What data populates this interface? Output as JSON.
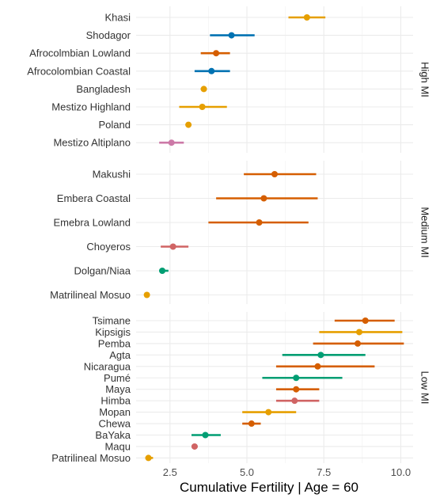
{
  "chart_data": {
    "type": "dot-errorbar",
    "xlabel": "Cumulative Fertility | Age = 60",
    "xlim": [
      1.4,
      10.4
    ],
    "xticks": [
      2.5,
      5.0,
      7.5,
      10.0
    ],
    "xtick_labels": [
      "2.5",
      "5.0",
      "7.5",
      "10.0"
    ],
    "grid": true,
    "legend": "none",
    "colors": {
      "orange": "#E69F00",
      "blue": "#0072B2",
      "vermillion": "#D55E00",
      "pink": "#CC79A7",
      "green": "#009E73",
      "rose": "#D06464"
    },
    "panels": [
      {
        "label": "High MI",
        "rows": [
          {
            "name": "Khasi",
            "value": 6.95,
            "lo": 6.35,
            "hi": 7.55,
            "color": "#E69F00"
          },
          {
            "name": "Shodagor",
            "value": 4.5,
            "lo": 3.8,
            "hi": 5.25,
            "color": "#0072B2"
          },
          {
            "name": "Afrocolmbian Lowland",
            "value": 4.0,
            "lo": 3.5,
            "hi": 4.45,
            "color": "#D55E00"
          },
          {
            "name": "Afrocolombian Coastal",
            "value": 3.85,
            "lo": 3.3,
            "hi": 4.45,
            "color": "#0072B2"
          },
          {
            "name": "Bangladesh",
            "value": 3.6,
            "lo": 3.5,
            "hi": 3.7,
            "color": "#E69F00"
          },
          {
            "name": "Mestizo Highland",
            "value": 3.55,
            "lo": 2.8,
            "hi": 4.35,
            "color": "#E69F00"
          },
          {
            "name": "Poland",
            "value": 3.1,
            "lo": 3.05,
            "hi": 3.15,
            "color": "#E69F00"
          },
          {
            "name": "Mestizo Altiplano",
            "value": 2.55,
            "lo": 2.15,
            "hi": 2.95,
            "color": "#CC79A7"
          }
        ]
      },
      {
        "label": "Medium MI",
        "rows": [
          {
            "name": "Makushi",
            "value": 5.9,
            "lo": 4.9,
            "hi": 7.25,
            "color": "#D55E00"
          },
          {
            "name": "Embera Coastal",
            "value": 5.55,
            "lo": 4.0,
            "hi": 7.3,
            "color": "#D55E00"
          },
          {
            "name": "Emebra Lowland",
            "value": 5.4,
            "lo": 3.75,
            "hi": 7.0,
            "color": "#D55E00"
          },
          {
            "name": "Choyeros",
            "value": 2.6,
            "lo": 2.2,
            "hi": 3.1,
            "color": "#D06464"
          },
          {
            "name": "Dolgan/Niaa",
            "value": 2.25,
            "lo": 2.15,
            "hi": 2.45,
            "color": "#009E73"
          },
          {
            "name": "Matrilineal Mosuo",
            "value": 1.75,
            "lo": 1.7,
            "hi": 1.8,
            "color": "#E69F00"
          }
        ]
      },
      {
        "label": "Low MI",
        "rows": [
          {
            "name": "Tsimane",
            "value": 8.85,
            "lo": 7.85,
            "hi": 9.8,
            "color": "#D55E00"
          },
          {
            "name": "Kipsigis",
            "value": 8.65,
            "lo": 7.35,
            "hi": 10.05,
            "color": "#E69F00"
          },
          {
            "name": "Pemba",
            "value": 8.6,
            "lo": 7.15,
            "hi": 10.1,
            "color": "#D55E00"
          },
          {
            "name": "Agta",
            "value": 7.4,
            "lo": 6.15,
            "hi": 8.85,
            "color": "#009E73"
          },
          {
            "name": "Nicaragua",
            "value": 7.3,
            "lo": 5.95,
            "hi": 9.15,
            "color": "#D55E00"
          },
          {
            "name": "Pumé",
            "value": 6.6,
            "lo": 5.5,
            "hi": 8.1,
            "color": "#009E73"
          },
          {
            "name": "Maya",
            "value": 6.6,
            "lo": 5.95,
            "hi": 7.35,
            "color": "#D55E00"
          },
          {
            "name": "Himba",
            "value": 6.55,
            "lo": 5.95,
            "hi": 7.35,
            "color": "#D06464"
          },
          {
            "name": "Mopan",
            "value": 5.7,
            "lo": 4.85,
            "hi": 6.6,
            "color": "#E69F00"
          },
          {
            "name": "Chewa",
            "value": 5.15,
            "lo": 4.85,
            "hi": 5.45,
            "color": "#D55E00"
          },
          {
            "name": "BaYaka",
            "value": 3.65,
            "lo": 3.2,
            "hi": 4.15,
            "color": "#009E73"
          },
          {
            "name": "Maqu",
            "value": 3.3,
            "lo": 3.2,
            "hi": 3.4,
            "color": "#D06464"
          },
          {
            "name": "Patrilineal Mosuo",
            "value": 1.8,
            "lo": 1.7,
            "hi": 1.95,
            "color": "#E69F00"
          }
        ]
      }
    ]
  }
}
